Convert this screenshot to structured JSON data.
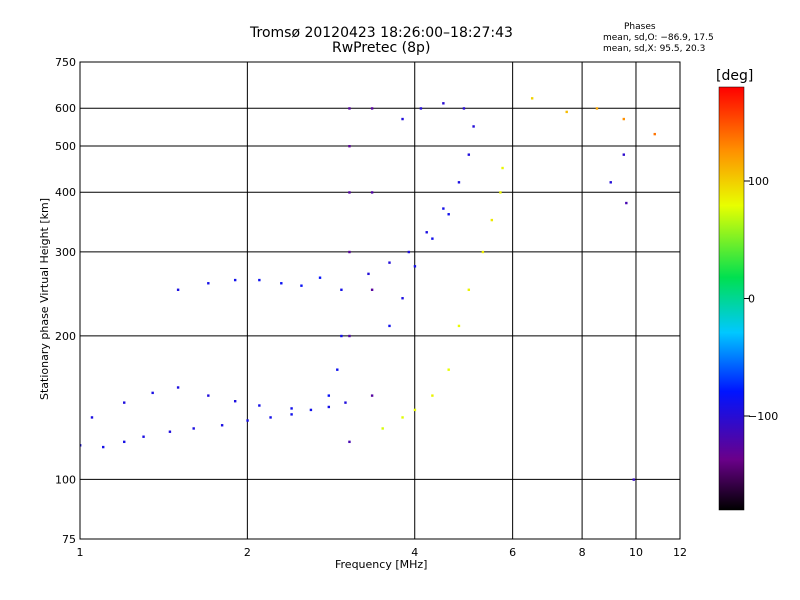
{
  "header": {
    "title": "Tromsø 20120423 18:26:00–18:27:43",
    "subtitle": "RwPretec (8p)"
  },
  "stats": {
    "heading": "Phases",
    "line1": "mean, sd,O: −86.9, 17.5",
    "line2": "mean, sd,X:  95.5, 20.3"
  },
  "colorbar": {
    "unit": "[deg]",
    "ticks": [
      {
        "label": "100",
        "value": 100
      },
      {
        "label": "0",
        "value": 0
      },
      {
        "label": "−100",
        "value": -100
      }
    ],
    "range": [
      -180,
      180
    ]
  },
  "chart_data": {
    "type": "scatter",
    "title": "Tromsø 20120423 18:26:00–18:27:43",
    "subtitle": "RwPretec (8p)",
    "xlabel": "Frequency [MHz]",
    "ylabel": "Stationary phase Virtual Height [km]",
    "xscale": "log",
    "yscale": "log",
    "xlim": [
      1,
      12
    ],
    "ylim": [
      75,
      750
    ],
    "xticks": [
      {
        "label": "1",
        "value": 1
      },
      {
        "label": "2",
        "value": 2
      },
      {
        "label": "4",
        "value": 4
      },
      {
        "label": "6",
        "value": 6
      },
      {
        "label": "8",
        "value": 8
      },
      {
        "label": "10",
        "value": 10
      },
      {
        "label": "12",
        "value": 12
      }
    ],
    "yticks": [
      {
        "label": "75",
        "value": 75
      },
      {
        "label": "100",
        "value": 100
      },
      {
        "label": "200",
        "value": 200
      },
      {
        "label": "300",
        "value": 300
      },
      {
        "label": "400",
        "value": 400
      },
      {
        "label": "500",
        "value": 500
      },
      {
        "label": "600",
        "value": 600
      },
      {
        "label": "750",
        "value": 750
      }
    ],
    "grid": true,
    "colorscale": "rainbow (black→purple→blue→cyan→green→yellow→red)",
    "color_variable": "phase [deg]",
    "series": [
      {
        "points": [
          [
            1.0,
            118,
            -95
          ],
          [
            1.1,
            117,
            -92
          ],
          [
            1.2,
            120,
            -93
          ],
          [
            1.3,
            123,
            -95
          ],
          [
            1.45,
            126,
            -98
          ],
          [
            1.6,
            128,
            -96
          ],
          [
            1.8,
            130,
            -95
          ],
          [
            2.0,
            133,
            -93
          ],
          [
            2.2,
            135,
            -92
          ],
          [
            2.4,
            137,
            -90
          ],
          [
            2.6,
            140,
            -90
          ],
          [
            2.8,
            142,
            -92
          ],
          [
            3.0,
            145,
            -98
          ]
        ]
      },
      {
        "points": [
          [
            1.05,
            135,
            -95
          ],
          [
            1.2,
            145,
            -97
          ],
          [
            1.35,
            152,
            -94
          ],
          [
            1.5,
            156,
            -96
          ],
          [
            1.7,
            150,
            -98
          ],
          [
            1.9,
            146,
            -95
          ],
          [
            2.1,
            143,
            -92
          ],
          [
            2.4,
            141,
            -90
          ]
        ]
      },
      {
        "points": [
          [
            1.5,
            250,
            -95
          ],
          [
            1.7,
            258,
            -92
          ],
          [
            1.9,
            262,
            -90
          ],
          [
            2.1,
            262,
            -88
          ],
          [
            2.3,
            258,
            -86
          ],
          [
            2.5,
            255,
            -85
          ],
          [
            2.7,
            265,
            -83
          ]
        ]
      },
      {
        "points": [
          [
            2.8,
            150,
            -85
          ],
          [
            2.9,
            170,
            -88
          ],
          [
            2.95,
            200,
            -90
          ],
          [
            2.95,
            250,
            -92
          ]
        ]
      },
      {
        "points": [
          [
            3.05,
            120,
            -120
          ],
          [
            3.05,
            200,
            -125
          ],
          [
            3.05,
            300,
            -130
          ],
          [
            3.05,
            400,
            -128
          ],
          [
            3.05,
            500,
            -132
          ],
          [
            3.05,
            600,
            -128
          ],
          [
            3.35,
            150,
            -128
          ],
          [
            3.35,
            250,
            -130
          ],
          [
            3.35,
            400,
            -126
          ],
          [
            3.35,
            600,
            -130
          ]
        ]
      },
      {
        "points": [
          [
            3.3,
            270,
            -100
          ],
          [
            3.6,
            285,
            -100
          ],
          [
            3.9,
            300,
            -98
          ],
          [
            4.2,
            330,
            -95
          ],
          [
            4.5,
            370,
            -92
          ],
          [
            4.8,
            420,
            -95
          ],
          [
            5.0,
            480,
            -98
          ],
          [
            5.1,
            550,
            -100
          ],
          [
            4.9,
            600,
            -102
          ],
          [
            4.5,
            615,
            -103
          ],
          [
            4.1,
            600,
            -100
          ],
          [
            3.8,
            570,
            -98
          ]
        ]
      },
      {
        "points": [
          [
            3.6,
            210,
            -90
          ],
          [
            3.8,
            240,
            -95
          ],
          [
            4.0,
            280,
            -92
          ],
          [
            4.3,
            320,
            -90
          ],
          [
            4.6,
            360,
            -90
          ]
        ]
      },
      {
        "points": [
          [
            3.5,
            128,
            75
          ],
          [
            3.8,
            135,
            78
          ],
          [
            4.0,
            140,
            82
          ],
          [
            4.3,
            150,
            85
          ],
          [
            4.6,
            170,
            80
          ],
          [
            4.8,
            210,
            82
          ],
          [
            5.0,
            250,
            85
          ],
          [
            5.3,
            300,
            88
          ],
          [
            5.5,
            350,
            90
          ],
          [
            5.7,
            400,
            85
          ],
          [
            5.75,
            450,
            83
          ]
        ]
      },
      {
        "points": [
          [
            6.5,
            630,
            100
          ],
          [
            7.5,
            590,
            110
          ],
          [
            8.5,
            600,
            120
          ],
          [
            9.5,
            570,
            130
          ],
          [
            9.0,
            420,
            -100
          ],
          [
            9.5,
            480,
            -105
          ],
          [
            9.6,
            380,
            -120
          ],
          [
            9.9,
            100,
            -110
          ],
          [
            10.8,
            530,
            140
          ]
        ]
      }
    ]
  }
}
